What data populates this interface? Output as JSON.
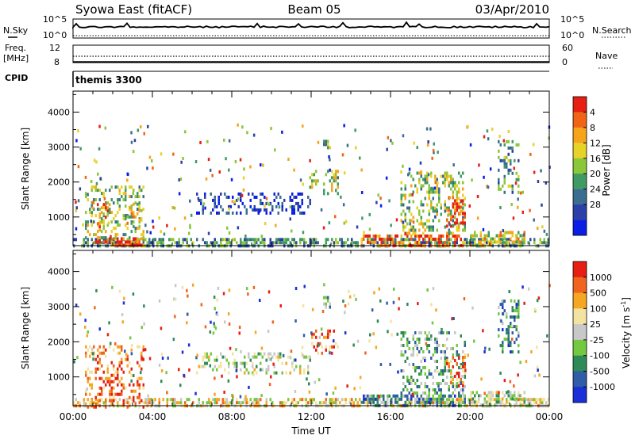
{
  "header": {
    "station": "Syowa East (fitACF)",
    "beam": "Beam 05",
    "date": "03/Apr/2010"
  },
  "top_panels": {
    "nsky_label": "N.Sky",
    "nsky_ticks": [
      "10^5",
      "10^0"
    ],
    "nsearch_label": "N.Search",
    "nsearch_ticks": [
      "10^5",
      "10^0"
    ],
    "freq_label": "Freq.",
    "freq_unit": "[MHz]",
    "freq_ticks": [
      "12",
      "8"
    ],
    "nave_label": "Nave",
    "nave_ticks": [
      "60",
      "0"
    ],
    "cpid_label": "CPID",
    "cpid_value": "themis 3300"
  },
  "chart_data": [
    {
      "type": "heatmap",
      "name": "power",
      "ylabel": "Slant Range [km]",
      "y_ticks": [
        1000,
        2000,
        3000,
        4000
      ],
      "ylim": [
        180,
        4600
      ],
      "x_ticks": [
        "00:00",
        "04:00",
        "08:00",
        "12:00",
        "16:00",
        "20:00",
        "00:00"
      ],
      "xlim_hours": [
        0,
        24
      ],
      "colorbar": {
        "label": "Power [dB]",
        "ticks": [
          "4",
          "8",
          "12",
          "16",
          "20",
          "24",
          "28"
        ],
        "colors": [
          "#0a1ee6",
          "#2b3fa8",
          "#3a6d8f",
          "#3f9a63",
          "#8cc63a",
          "#e7d22a",
          "#f5a41c",
          "#f06418",
          "#e61e14"
        ]
      },
      "regions": [
        {
          "t0": 0.0,
          "t1": 24.0,
          "r0": 180,
          "r1": 400,
          "level": 0.35
        },
        {
          "t0": 1.0,
          "t1": 3.6,
          "r0": 180,
          "r1": 420,
          "level": 0.9
        },
        {
          "t0": 0.6,
          "t1": 3.6,
          "r0": 400,
          "r1": 1900,
          "level": 0.5
        },
        {
          "t0": 1.2,
          "t1": 1.9,
          "r0": 600,
          "r1": 1400,
          "level": 0.75
        },
        {
          "t0": 2.7,
          "t1": 3.5,
          "r0": 700,
          "r1": 1500,
          "level": 0.6
        },
        {
          "t0": 6.2,
          "t1": 12.0,
          "r0": 1150,
          "r1": 1700,
          "level": 0.1
        },
        {
          "t0": 11.9,
          "t1": 13.4,
          "r0": 1700,
          "r1": 2350,
          "level": 0.55
        },
        {
          "t0": 12.6,
          "t1": 13.0,
          "r0": 3000,
          "r1": 3300,
          "level": 0.4
        },
        {
          "t0": 14.5,
          "t1": 19.8,
          "r0": 180,
          "r1": 500,
          "level": 0.85
        },
        {
          "t0": 16.5,
          "t1": 19.8,
          "r0": 500,
          "r1": 2300,
          "level": 0.5
        },
        {
          "t0": 18.8,
          "t1": 19.8,
          "r0": 700,
          "r1": 1600,
          "level": 0.9
        },
        {
          "t0": 20.0,
          "t1": 22.8,
          "r0": 180,
          "r1": 600,
          "level": 0.6
        },
        {
          "t0": 21.4,
          "t1": 22.5,
          "r0": 1700,
          "r1": 3200,
          "level": 0.35
        }
      ]
    },
    {
      "type": "heatmap",
      "name": "velocity",
      "ylabel": "Slant Range [km]",
      "y_ticks": [
        1000,
        2000,
        3000,
        4000
      ],
      "ylim": [
        180,
        4600
      ],
      "x_ticks": [
        "00:00",
        "04:00",
        "08:00",
        "12:00",
        "16:00",
        "20:00",
        "00:00"
      ],
      "xlim_hours": [
        0,
        24
      ],
      "xlabel": "Time UT",
      "colorbar": {
        "label": "Velocity [m s",
        "label_sup": "-1",
        "label_tail": "]",
        "ticks": [
          "1000",
          "500",
          "100",
          "25",
          "-25",
          "-100",
          "-500",
          "-1000"
        ],
        "colors": [
          "#1a2fd6",
          "#2f5ea6",
          "#2e8a56",
          "#74c842",
          "#c8c8c8",
          "#f3e3a0",
          "#f5a623",
          "#f0641e",
          "#e61e14"
        ]
      },
      "regions": [
        {
          "t0": 0.0,
          "t1": 24.0,
          "r0": 180,
          "r1": 400,
          "level": 0.6
        },
        {
          "t0": 0.6,
          "t1": 3.6,
          "r0": 180,
          "r1": 1900,
          "level": 0.8
        },
        {
          "t0": 6.2,
          "t1": 12.0,
          "r0": 1150,
          "r1": 1700,
          "level": 0.48
        },
        {
          "t0": 11.9,
          "t1": 13.4,
          "r0": 1700,
          "r1": 2350,
          "level": 0.82
        },
        {
          "t0": 12.6,
          "t1": 13.0,
          "r0": 3000,
          "r1": 3300,
          "level": 0.3
        },
        {
          "t0": 14.5,
          "t1": 19.8,
          "r0": 180,
          "r1": 500,
          "level": 0.3
        },
        {
          "t0": 16.5,
          "t1": 19.8,
          "r0": 500,
          "r1": 2300,
          "level": 0.35
        },
        {
          "t0": 18.8,
          "t1": 19.8,
          "r0": 700,
          "r1": 1600,
          "level": 0.8
        },
        {
          "t0": 20.0,
          "t1": 22.8,
          "r0": 180,
          "r1": 600,
          "level": 0.45
        },
        {
          "t0": 21.4,
          "t1": 22.5,
          "r0": 1700,
          "r1": 3200,
          "level": 0.25
        }
      ]
    }
  ]
}
